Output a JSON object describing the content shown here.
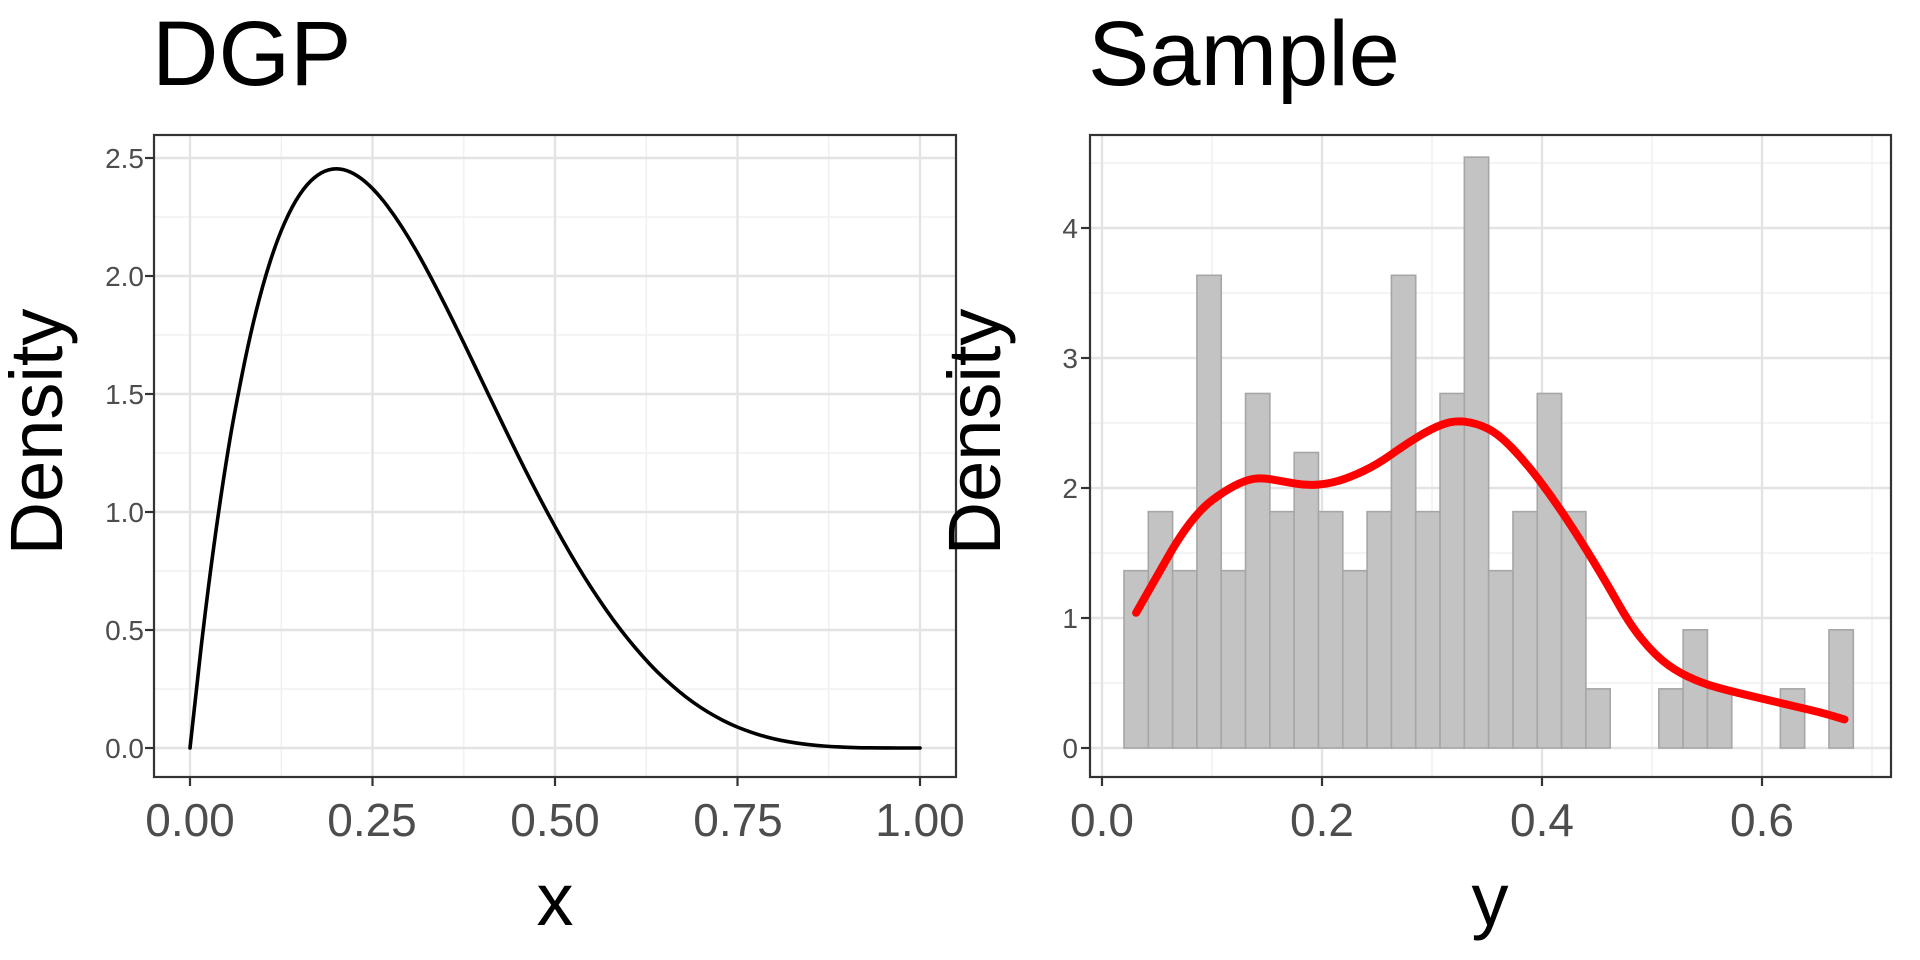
{
  "figure": {
    "background": "#FFFFFF",
    "panel_border_color": "#333333",
    "grid_major_color": "#E3E3E3",
    "grid_minor_color": "#F1F1F1",
    "tick_color": "#333333",
    "axis_text_color": "#4D4D4D",
    "title_color": "#000000"
  },
  "chart_data": [
    {
      "type": "line",
      "title": "DGP",
      "xlabel": "x",
      "ylabel": "Density",
      "xlim": [
        0.0,
        1.0
      ],
      "ylim": [
        0.0,
        2.5
      ],
      "grid": true,
      "legend": "none",
      "x_ticks": [
        {
          "v": 0.0,
          "label": "0.00"
        },
        {
          "v": 0.25,
          "label": "0.25"
        },
        {
          "v": 0.5,
          "label": "0.50"
        },
        {
          "v": 0.75,
          "label": "0.75"
        },
        {
          "v": 1.0,
          "label": "1.00"
        }
      ],
      "y_ticks": [
        {
          "v": 0.0,
          "label": "0.0"
        },
        {
          "v": 0.5,
          "label": "0.5"
        },
        {
          "v": 1.0,
          "label": "1.0"
        },
        {
          "v": 1.5,
          "label": "1.5"
        },
        {
          "v": 2.0,
          "label": "2.0"
        },
        {
          "v": 2.5,
          "label": "2.5"
        }
      ],
      "series": [
        {
          "name": "beta-2-5-density-curve",
          "color": "#000000",
          "width": 3.6,
          "points": [
            [
              0.0,
              0.0
            ],
            [
              0.01,
              0.288
            ],
            [
              0.02,
              0.553
            ],
            [
              0.03,
              0.797
            ],
            [
              0.04,
              1.019
            ],
            [
              0.05,
              1.222
            ],
            [
              0.06,
              1.405
            ],
            [
              0.08,
              1.719
            ],
            [
              0.1,
              1.968
            ],
            [
              0.12,
              2.159
            ],
            [
              0.14,
              2.297
            ],
            [
              0.16,
              2.39
            ],
            [
              0.18,
              2.441
            ],
            [
              0.2,
              2.458
            ],
            [
              0.22,
              2.443
            ],
            [
              0.24,
              2.402
            ],
            [
              0.26,
              2.339
            ],
            [
              0.28,
              2.257
            ],
            [
              0.3,
              2.161
            ],
            [
              0.32,
              2.053
            ],
            [
              0.34,
              1.935
            ],
            [
              0.36,
              1.812
            ],
            [
              0.38,
              1.685
            ],
            [
              0.4,
              1.555
            ],
            [
              0.42,
              1.426
            ],
            [
              0.44,
              1.298
            ],
            [
              0.46,
              1.173
            ],
            [
              0.48,
              1.053
            ],
            [
              0.5,
              0.938
            ],
            [
              0.52,
              0.828
            ],
            [
              0.54,
              0.725
            ],
            [
              0.56,
              0.63
            ],
            [
              0.58,
              0.541
            ],
            [
              0.6,
              0.461
            ],
            [
              0.62,
              0.388
            ],
            [
              0.64,
              0.322
            ],
            [
              0.66,
              0.265
            ],
            [
              0.68,
              0.214
            ],
            [
              0.7,
              0.17
            ],
            [
              0.72,
              0.133
            ],
            [
              0.74,
              0.101
            ],
            [
              0.76,
              0.076
            ],
            [
              0.78,
              0.055
            ],
            [
              0.8,
              0.038
            ],
            [
              0.82,
              0.026
            ],
            [
              0.84,
              0.017
            ],
            [
              0.86,
              0.01
            ],
            [
              0.88,
              0.006
            ],
            [
              0.9,
              0.003
            ],
            [
              0.92,
              0.001
            ],
            [
              0.94,
              0.0005
            ],
            [
              0.96,
              0.0001
            ],
            [
              0.98,
              0.0
            ],
            [
              1.0,
              0.0
            ]
          ]
        }
      ]
    },
    {
      "type": "histogram",
      "title": "Sample",
      "xlabel": "y",
      "ylabel": "Density",
      "xlim": [
        0.0,
        0.7
      ],
      "ylim": [
        0.0,
        4.7
      ],
      "grid": true,
      "legend": "none",
      "x_ticks": [
        {
          "v": 0.0,
          "label": "0.0"
        },
        {
          "v": 0.2,
          "label": "0.2"
        },
        {
          "v": 0.4,
          "label": "0.4"
        },
        {
          "v": 0.6,
          "label": "0.6"
        }
      ],
      "y_ticks": [
        {
          "v": 0,
          "label": "0"
        },
        {
          "v": 1,
          "label": "1"
        },
        {
          "v": 2,
          "label": "2"
        },
        {
          "v": 3,
          "label": "3"
        },
        {
          "v": 4,
          "label": "4"
        }
      ],
      "histogram": {
        "n": 100,
        "n_bins": 30,
        "bin_start": 0.02,
        "binwidth": 0.0221,
        "fill": "#C3C3C3",
        "stroke": "#A6A6A6",
        "densities": [
          1.364,
          1.818,
          1.364,
          3.636,
          1.364,
          2.727,
          1.818,
          2.273,
          1.818,
          1.364,
          1.818,
          3.636,
          1.818,
          2.727,
          4.545,
          1.364,
          1.818,
          2.727,
          1.818,
          0.455,
          0,
          0,
          0.455,
          0.909,
          0.455,
          0,
          0,
          0.455,
          0,
          0.909
        ],
        "counts": [
          3,
          4,
          3,
          8,
          3,
          6,
          4,
          5,
          4,
          3,
          4,
          8,
          4,
          6,
          10,
          3,
          4,
          6,
          4,
          1,
          0,
          0,
          1,
          2,
          1,
          0,
          0,
          1,
          0,
          2
        ]
      },
      "series": [
        {
          "name": "kernel-density-curve",
          "color": "#FF0000",
          "width": 8,
          "points": [
            [
              0.031,
              1.04
            ],
            [
              0.05,
              1.32
            ],
            [
              0.07,
              1.62
            ],
            [
              0.09,
              1.84
            ],
            [
              0.11,
              1.97
            ],
            [
              0.13,
              2.06
            ],
            [
              0.145,
              2.08
            ],
            [
              0.165,
              2.05
            ],
            [
              0.185,
              2.02
            ],
            [
              0.205,
              2.03
            ],
            [
              0.225,
              2.08
            ],
            [
              0.25,
              2.18
            ],
            [
              0.275,
              2.33
            ],
            [
              0.3,
              2.46
            ],
            [
              0.32,
              2.52
            ],
            [
              0.34,
              2.5
            ],
            [
              0.36,
              2.42
            ],
            [
              0.385,
              2.2
            ],
            [
              0.41,
              1.92
            ],
            [
              0.435,
              1.6
            ],
            [
              0.46,
              1.25
            ],
            [
              0.48,
              0.95
            ],
            [
              0.5,
              0.74
            ],
            [
              0.52,
              0.6
            ],
            [
              0.545,
              0.5
            ],
            [
              0.57,
              0.44
            ],
            [
              0.6,
              0.38
            ],
            [
              0.63,
              0.32
            ],
            [
              0.655,
              0.27
            ],
            [
              0.675,
              0.22
            ]
          ]
        }
      ]
    }
  ]
}
